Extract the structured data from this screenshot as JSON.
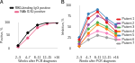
{
  "chart_data": [
    {
      "type": "line",
      "title": "A",
      "categories": [
        "2–3",
        "4–7",
        "8–11",
        "12–15",
        ">16"
      ],
      "series": [
        {
          "name": "RBD-binding IgG positive",
          "color": "#000000",
          "values": [
            10,
            60,
            90,
            100,
            100
          ]
        },
        {
          "name": "NAb ID50 positive",
          "color": "#e75480",
          "values": [
            5,
            40,
            80,
            95,
            100
          ]
        }
      ],
      "x_label": "Weeks after PCR diagnosis",
      "y_label": "Positive, %",
      "ylim": [
        0,
        100
      ],
      "yticks": [
        0,
        50,
        100
      ],
      "grid": false,
      "legend": "top",
      "marker": "circle"
    },
    {
      "type": "line",
      "title": "B",
      "categories": [
        "2–3",
        "4–7",
        "8–11",
        "12–15",
        ">16"
      ],
      "series": [
        {
          "name": "Patient 1",
          "color": "#e41a1c",
          "values": [
            20,
            70,
            85,
            60,
            40
          ]
        },
        {
          "name": "Patient 2",
          "color": "#984ea3",
          "values": [
            10,
            55,
            75,
            65,
            50
          ]
        },
        {
          "name": "Patient 3",
          "color": "#4daf4a",
          "values": [
            15,
            45,
            60,
            50,
            35
          ]
        },
        {
          "name": "Patient 4",
          "color": "#ff7f00",
          "values": [
            5,
            35,
            55,
            45,
            30
          ]
        },
        {
          "name": "Patient 5",
          "color": "#377eb8",
          "values": [
            25,
            80,
            90,
            70,
            55
          ]
        },
        {
          "name": "Patient 6",
          "color": "#f781bf",
          "values": [
            10,
            30,
            40,
            35,
            25
          ]
        },
        {
          "name": "Patient 7",
          "color": "#999999",
          "values": [
            5,
            20,
            30,
            25,
            20
          ]
        }
      ],
      "x_label": "Weeks after PCR diagnosis",
      "y_label": "Inhibition, %",
      "ylim": [
        0,
        100
      ],
      "yticks": [
        0,
        25,
        50,
        75,
        100
      ],
      "grid": false,
      "legend": "right",
      "marker": "circle"
    }
  ]
}
